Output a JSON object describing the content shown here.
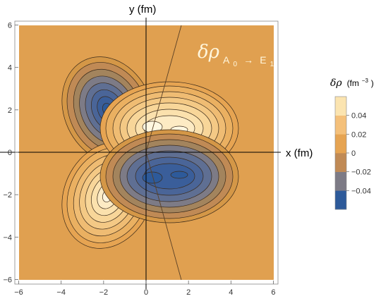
{
  "chart_data": {
    "type": "heatmap",
    "subtype": "filled-contour",
    "title": "",
    "xlabel": "x (fm)",
    "ylabel": "y (fm)",
    "xlim": [
      -6,
      6
    ],
    "ylim": [
      -6,
      6
    ],
    "x_ticks": [
      "−6",
      "−4",
      "−2",
      "0",
      "2",
      "4",
      "6"
    ],
    "y_ticks": [
      "6",
      "4",
      "2",
      "0",
      "−2",
      "−4",
      "−6"
    ],
    "annotation": {
      "text_main": "δρ",
      "text_sub": "A",
      "text_subsub": "0",
      "text_arrow": "→",
      "text_sub2": "E",
      "text_sub2sub": "1"
    },
    "boundary_lines": [
      {
        "from": [
          0,
          0
        ],
        "to": [
          1.7,
          6
        ]
      },
      {
        "from": [
          0,
          0
        ],
        "to": [
          1.7,
          -6
        ]
      }
    ],
    "features": [
      {
        "kind": "minimum",
        "x": -1.8,
        "y": 2.0,
        "value": -0.05
      },
      {
        "kind": "maximum",
        "x": -1.8,
        "y": -2.0,
        "value": 0.05
      },
      {
        "kind": "maximum",
        "x": 0.3,
        "y": 1.2,
        "value": 0.06
      },
      {
        "kind": "maximum",
        "x": 1.6,
        "y": 1.0,
        "value": 0.05
      },
      {
        "kind": "minimum",
        "x": 0.3,
        "y": -1.2,
        "value": -0.06
      },
      {
        "kind": "minimum",
        "x": 1.6,
        "y": -1.0,
        "value": -0.05
      }
    ],
    "colorbar": {
      "title_main": "δρ",
      "title_unit": "(fm",
      "title_exp": "−3",
      "title_close": ")",
      "ticks": [
        "0.04",
        "0.02",
        "0",
        "−0.02",
        "−0.04"
      ],
      "tick_values": [
        0.04,
        0.02,
        0,
        -0.02,
        -0.04
      ],
      "range": [
        -0.06,
        0.06
      ],
      "bands": [
        "#2d5a9a",
        "#7d7b86",
        "#c08a55",
        "#e6a452",
        "#f4c07a",
        "#fbe4b0"
      ]
    },
    "colors": {
      "background": "#e0a050",
      "deep_negative": "#2d5a9a",
      "peak_positive": "#fff7e0",
      "contour": "#3a2a1a"
    }
  }
}
